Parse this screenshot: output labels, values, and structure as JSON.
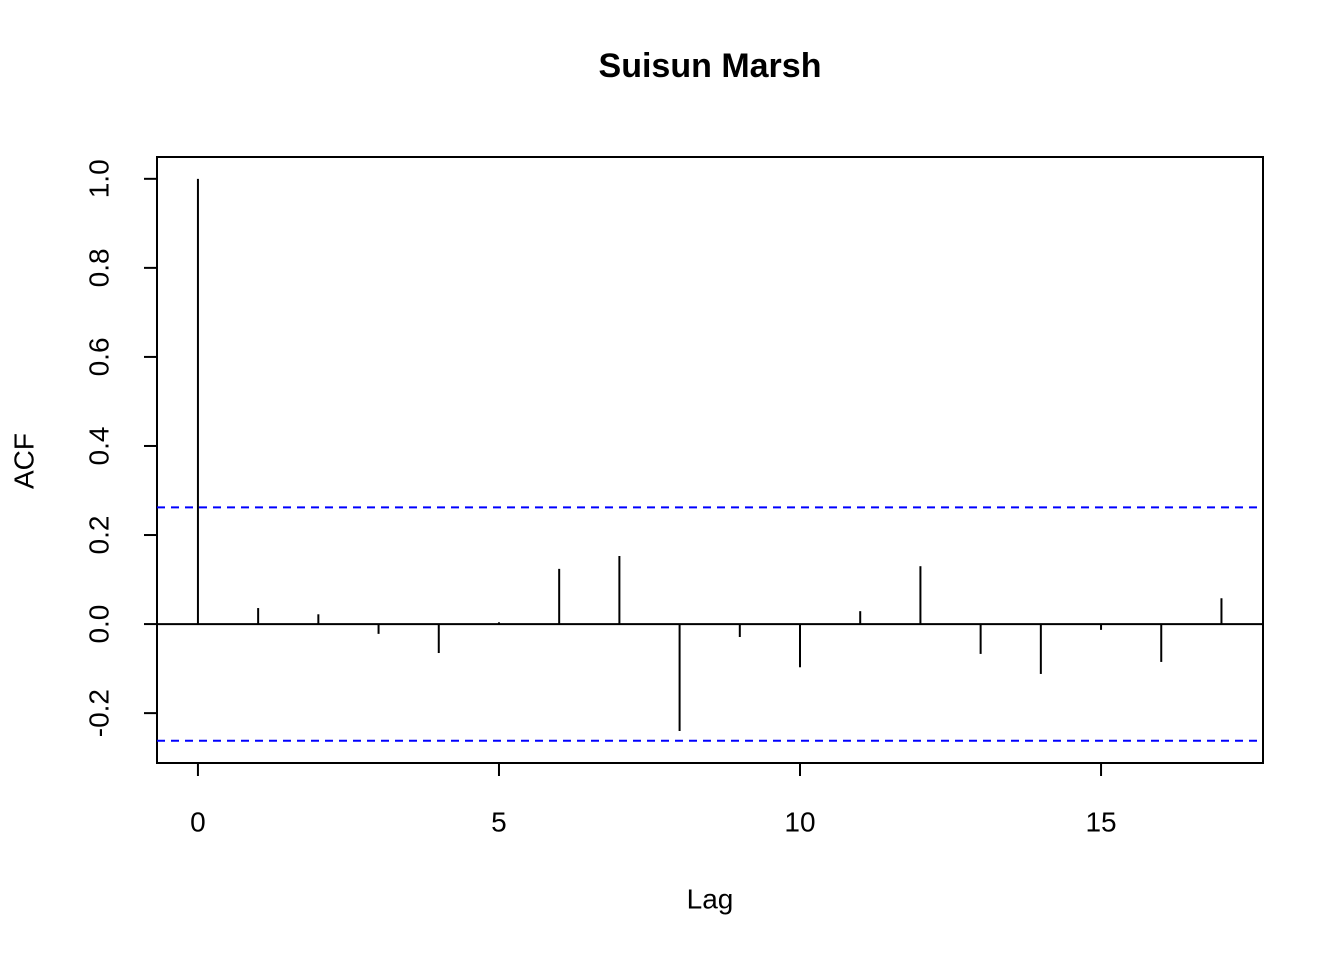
{
  "chart_data": {
    "type": "acf",
    "title": "Suisun Marsh",
    "x_label": "Lag",
    "y_label": "ACF",
    "x": [
      0,
      1,
      2,
      3,
      4,
      5,
      6,
      7,
      8,
      9,
      10,
      11,
      12,
      13,
      14,
      15,
      16,
      17
    ],
    "values": [
      1.0,
      0.036,
      0.022,
      -0.022,
      -0.065,
      0.004,
      0.124,
      0.153,
      -0.24,
      -0.029,
      -0.097,
      0.029,
      0.13,
      -0.067,
      -0.112,
      -0.013,
      -0.085,
      0.058
    ],
    "color": "#000000",
    "ci_lines": [
      0.262,
      -0.262
    ],
    "ci_color": "#0000ff",
    "xlim": [
      -0.68,
      17.69
    ],
    "xticks": [
      0,
      5,
      10,
      15
    ],
    "ylim": [
      -0.312,
      1.049
    ],
    "yticks": [
      -0.2,
      {
        "value": 0,
        "label": "0.0"
      },
      0.2,
      0.4,
      0.6,
      0.8,
      {
        "value": 1,
        "label": "1.0"
      }
    ]
  }
}
